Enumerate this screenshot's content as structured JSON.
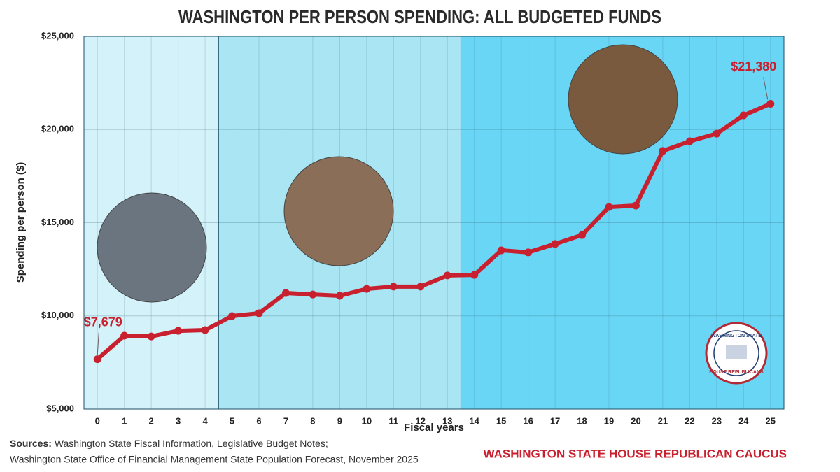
{
  "chart_data": {
    "type": "line",
    "title": "WASHINGTON PER PERSON SPENDING: ALL BUDGETED FUNDS",
    "x_label": "Fiscal years",
    "y_label": "Spending per person ($)",
    "x": [
      0,
      1,
      2,
      3,
      4,
      5,
      6,
      7,
      8,
      9,
      10,
      11,
      12,
      13,
      14,
      15,
      16,
      17,
      18,
      19,
      20,
      21,
      22,
      23,
      24,
      25
    ],
    "series": [
      {
        "name": "Spending per person",
        "color": "#c8202f",
        "values": [
          7679,
          8940,
          8900,
          9200,
          9240,
          9990,
          10140,
          11230,
          11150,
          11080,
          11450,
          11570,
          11570,
          12170,
          12200,
          13520,
          13410,
          13860,
          14340,
          15840,
          15920,
          18850,
          19370,
          19780,
          20760,
          21380
        ],
        "value_labels": [
          "$7,679",
          null,
          null,
          null,
          null,
          null,
          null,
          null,
          null,
          null,
          null,
          null,
          null,
          null,
          null,
          null,
          null,
          null,
          null,
          null,
          null,
          null,
          null,
          null,
          null,
          "$21,380"
        ]
      }
    ],
    "xlim": [
      -0.5,
      25.5
    ],
    "xticks": [
      0,
      1,
      2,
      3,
      4,
      5,
      6,
      7,
      8,
      9,
      10,
      11,
      12,
      13,
      14,
      15,
      16,
      17,
      18,
      19,
      20,
      21,
      22,
      23,
      24,
      25
    ],
    "ylim": [
      5000,
      25000
    ],
    "yticks": [
      {
        "value": 5000,
        "label": "$5,000"
      },
      {
        "value": 10000,
        "label": "$10,000"
      },
      {
        "value": 15000,
        "label": "$15,000"
      },
      {
        "value": 20000,
        "label": "$20,000"
      },
      {
        "value": 25000,
        "label": "$25,000"
      }
    ],
    "grid": true,
    "regions": [
      {
        "from": -0.5,
        "to": 4.5,
        "color": "#d3f2f9"
      },
      {
        "from": 4.5,
        "to": 13.5,
        "color": "#a9e5f3"
      },
      {
        "from": 13.5,
        "to": 25.5,
        "color": "#6ad6f6"
      }
    ]
  },
  "footer": {
    "sources_label": "Sources:",
    "sources_line1": "Washington State Fiscal Information, Legislative Budget Notes;",
    "sources_line2": "Washington State Office of Financial Management State Population Forecast, November 2025",
    "brand": "WASHINGTON STATE HOUSE REPUBLICAN CAUCUS"
  },
  "logo": {
    "top_text": "WASHINGTON STATE",
    "bottom_text": "HOUSE REPUBLICANS"
  }
}
